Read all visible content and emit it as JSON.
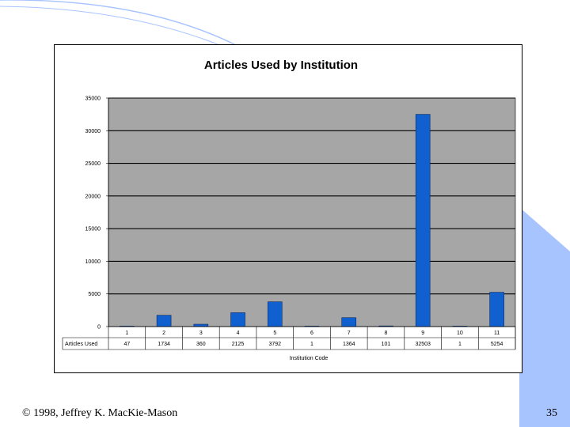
{
  "colors": {
    "bar": "#1060d0",
    "plot_bg": "#a6a6a6",
    "decor": "#a8c4ff"
  },
  "chart_data": {
    "type": "bar",
    "title": "Articles Used by Institution",
    "xlabel": "Institution Code",
    "ylabel": "",
    "ylim": [
      0,
      35000
    ],
    "yticks": [
      0,
      5000,
      10000,
      15000,
      20000,
      25000,
      30000,
      35000
    ],
    "ytick_labels": [
      "0",
      "5000",
      "10000",
      "15000",
      "20000",
      "25000",
      "30000",
      "35000"
    ],
    "categories": [
      "1",
      "2",
      "3",
      "4",
      "5",
      "6",
      "7",
      "8",
      "9",
      "10",
      "11"
    ],
    "series": [
      {
        "name": "Articles Used",
        "values": [
          47,
          1734,
          360,
          2125,
          3792,
          1,
          1364,
          101,
          32503,
          1,
          5254
        ],
        "value_labels": [
          "47",
          "1734",
          "360",
          "2125",
          "3792",
          "1",
          "1364",
          "101",
          "32503",
          "1",
          "5254"
        ]
      }
    ],
    "table_row_label": "Articles Used",
    "grid": true
  },
  "footer": {
    "copyright": "© 1998, Jeffrey K. MacKie-Mason",
    "page_number": "35"
  }
}
